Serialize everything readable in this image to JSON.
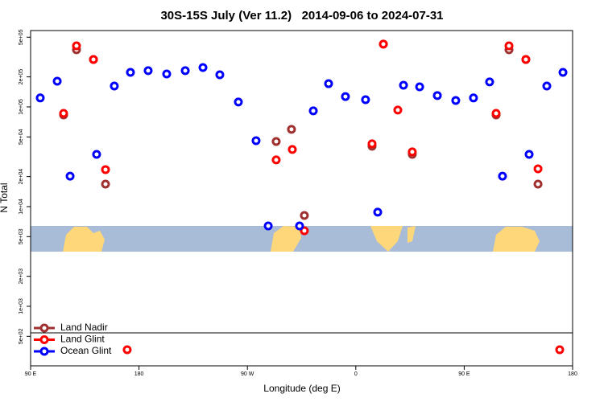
{
  "chart_data": {
    "type": "scatter",
    "title": "30S-15S July (Ver 11.2)   2014-09-06 to 2024-07-31",
    "x_label": "Longitude (deg E)",
    "y_label": "N Total",
    "xlim": [
      90,
      540
    ],
    "xticks": [
      {
        "value": 90,
        "label": "90 E"
      },
      180,
      {
        "value": 270,
        "label": "90 W"
      },
      {
        "value": 360,
        "label": "0"
      },
      {
        "value": 450,
        "label": "90 E"
      },
      {
        "value": 540,
        "label": "180"
      }
    ],
    "ylim": [
      253,
      583000
    ],
    "y_log": true,
    "yticks": [
      {
        "value": 500,
        "label": "5e+02"
      },
      {
        "value": 1000,
        "label": "1e+03"
      },
      {
        "value": 2000,
        "label": "2e+03"
      },
      {
        "value": 5000,
        "label": "5e+03"
      },
      {
        "value": 10000,
        "label": "1e+04"
      },
      {
        "value": 20000,
        "label": "2e+04"
      },
      {
        "value": 50000,
        "label": "5e+04"
      },
      {
        "value": 100000,
        "label": "1e+05"
      },
      {
        "value": 200000,
        "label": "2e+05"
      },
      {
        "value": 500000,
        "label": "5e+05"
      }
    ],
    "legend": "lower left",
    "series": [
      {
        "name": "Land Nadir",
        "color": "#a03030",
        "x": [
          117.4,
          128.1,
          142.2,
          152.2,
          293.9,
          306.6,
          317.3,
          373.5,
          382.9,
          406.9,
          476.5,
          487.2,
          501.2,
          511.3
        ],
        "values": [
          83000,
          374000,
          299000,
          16800,
          45000,
          59500,
          8150,
          40300,
          426000,
          33400,
          83000,
          374000,
          299000,
          16800
        ]
      },
      {
        "name": "Land Glint",
        "color": "#ff0000",
        "x": [
          117.4,
          128.1,
          142.2,
          152.2,
          170.2,
          293.9,
          307.3,
          317.3,
          373.5,
          382.9,
          394.9,
          406.9,
          476.5,
          487.2,
          501.2,
          511.3,
          529.3
        ],
        "values": [
          86100,
          410000,
          299000,
          23500,
          367,
          29400,
          37400,
          5730,
          42600,
          426000,
          92900,
          35400,
          86100,
          410000,
          299000,
          23900,
          367
        ]
      },
      {
        "name": "Ocean Glint",
        "color": "#0000ff",
        "x": [
          98.0,
          112.1,
          122.8,
          144.8,
          159.5,
          172.9,
          187.6,
          203.0,
          218.4,
          233.1,
          247.1,
          262.5,
          277.2,
          287.3,
          313.3,
          324.7,
          337.4,
          351.4,
          368.1,
          378.2,
          399.6,
          413.0,
          427.7,
          443.0,
          457.7,
          471.1,
          481.8,
          503.9,
          518.6,
          532.0
        ],
        "values": [
          123000,
          181000,
          20200,
          33400,
          162000,
          222000,
          231000,
          214000,
          231000,
          248000,
          210000,
          112000,
          45800,
          6400,
          6400,
          91200,
          171000,
          127000,
          118000,
          8790,
          165000,
          159000,
          130000,
          116000,
          123000,
          178000,
          20200,
          33400,
          162000,
          222000
        ]
      }
    ]
  }
}
